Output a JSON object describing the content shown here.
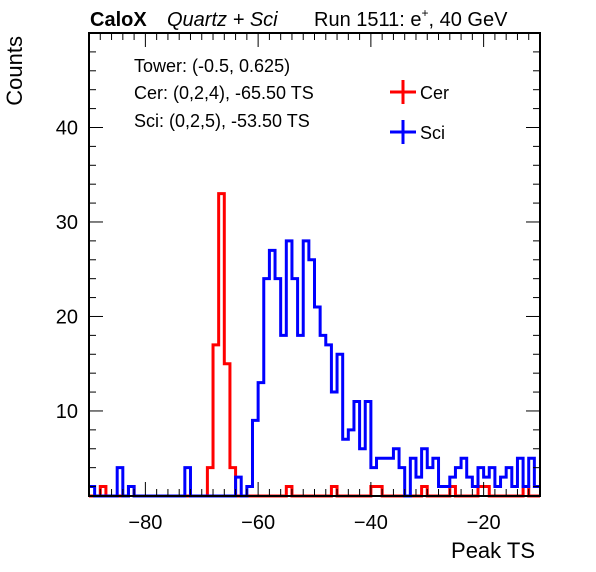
{
  "header": {
    "experiment": "CaloX",
    "subtitle": "Quartz + Sci",
    "run_label": "Run 1511: e",
    "particle_charge": "+",
    "energy": ", 40 GeV"
  },
  "info_box": {
    "lines": [
      "Tower: (-0.5, 0.625)",
      "Cer: (0,2,4), -65.50 TS",
      "Sci: (0,2,5), -53.50 TS"
    ]
  },
  "legend": {
    "placement": "top-right",
    "items": [
      {
        "label": "Cer",
        "color": "#ff0000"
      },
      {
        "label": "Sci",
        "color": "#0000ff"
      }
    ]
  },
  "chart_data": {
    "type": "histogram",
    "xlabel": "Peak TS",
    "ylabel": "Counts",
    "xlim": [
      -90,
      -10
    ],
    "ylim": [
      1,
      50
    ],
    "bin_width": 1,
    "x_ticks": [
      -80,
      -60,
      -40,
      -20
    ],
    "x_tick_labels": [
      "−80",
      "−60",
      "−40",
      "−20"
    ],
    "y_ticks": [
      10,
      20,
      30,
      40
    ],
    "y_tick_labels": [
      "10",
      "20",
      "30",
      "40"
    ],
    "series": [
      {
        "name": "Cer",
        "color": "#ff0000",
        "bin_low_edges": [
          -90,
          -89,
          -88,
          -87,
          -86,
          -85,
          -84,
          -83,
          -82,
          -81,
          -80,
          -79,
          -78,
          -77,
          -76,
          -75,
          -74,
          -73,
          -72,
          -71,
          -70,
          -69,
          -68,
          -67,
          -66,
          -65,
          -64,
          -63,
          -62,
          -61,
          -60,
          -59,
          -58,
          -57,
          -56,
          -55,
          -54,
          -53,
          -52,
          -51,
          -50,
          -49,
          -48,
          -47,
          -46,
          -45,
          -44,
          -43,
          -42,
          -41,
          -40,
          -39,
          -38,
          -37,
          -36,
          -35,
          -34,
          -33,
          -32,
          -31,
          -30,
          -29,
          -28,
          -27,
          -26,
          -25,
          -24,
          -23,
          -22,
          -21,
          -20,
          -19,
          -18,
          -17,
          -16,
          -15,
          -14,
          -13,
          -12,
          -11
        ],
        "counts": [
          0,
          0,
          2,
          0,
          0,
          1,
          0,
          2,
          0,
          0,
          0,
          1,
          0,
          1,
          0,
          1,
          0,
          0,
          0,
          1,
          1,
          4,
          17,
          33,
          15,
          4,
          0,
          0,
          1,
          0,
          0,
          1,
          0,
          1,
          0,
          2,
          0,
          0,
          0,
          0,
          1,
          0,
          0,
          2,
          0,
          1,
          0,
          1,
          0,
          0,
          2,
          2,
          0,
          1,
          0,
          1,
          0,
          0,
          0,
          2,
          0,
          1,
          1,
          1,
          2,
          1,
          1,
          1,
          1,
          2,
          2,
          1,
          0,
          1,
          1,
          1,
          1,
          2,
          0,
          1
        ]
      },
      {
        "name": "Sci",
        "color": "#0000ff",
        "bin_low_edges": [
          -90,
          -89,
          -88,
          -87,
          -86,
          -85,
          -84,
          -83,
          -82,
          -81,
          -80,
          -79,
          -78,
          -77,
          -76,
          -75,
          -74,
          -73,
          -72,
          -71,
          -70,
          -69,
          -68,
          -67,
          -66,
          -65,
          -64,
          -63,
          -62,
          -61,
          -60,
          -59,
          -58,
          -57,
          -56,
          -55,
          -54,
          -53,
          -52,
          -51,
          -50,
          -49,
          -48,
          -47,
          -46,
          -45,
          -44,
          -43,
          -42,
          -41,
          -40,
          -39,
          -38,
          -37,
          -36,
          -35,
          -34,
          -33,
          -32,
          -31,
          -30,
          -29,
          -28,
          -27,
          -26,
          -25,
          -24,
          -23,
          -22,
          -21,
          -20,
          -19,
          -18,
          -17,
          -16,
          -15,
          -14,
          -13,
          -12,
          -11
        ],
        "counts": [
          2,
          1,
          0,
          0,
          1,
          4,
          0,
          2,
          0,
          1,
          0,
          0,
          0,
          0,
          0,
          0,
          0,
          4,
          0,
          0,
          0,
          0,
          1,
          0,
          0,
          0,
          3,
          1,
          2,
          9,
          13,
          24,
          27,
          24,
          18,
          28,
          24,
          18,
          28,
          26,
          21,
          18,
          17,
          12,
          16,
          7,
          8,
          11,
          6,
          11,
          4,
          5,
          5,
          5,
          6,
          4,
          1,
          5,
          3,
          6,
          4,
          5,
          2,
          2,
          3,
          4,
          5,
          3,
          2,
          4,
          3,
          4,
          2,
          3,
          4,
          2,
          5,
          2,
          5,
          2
        ]
      }
    ]
  }
}
